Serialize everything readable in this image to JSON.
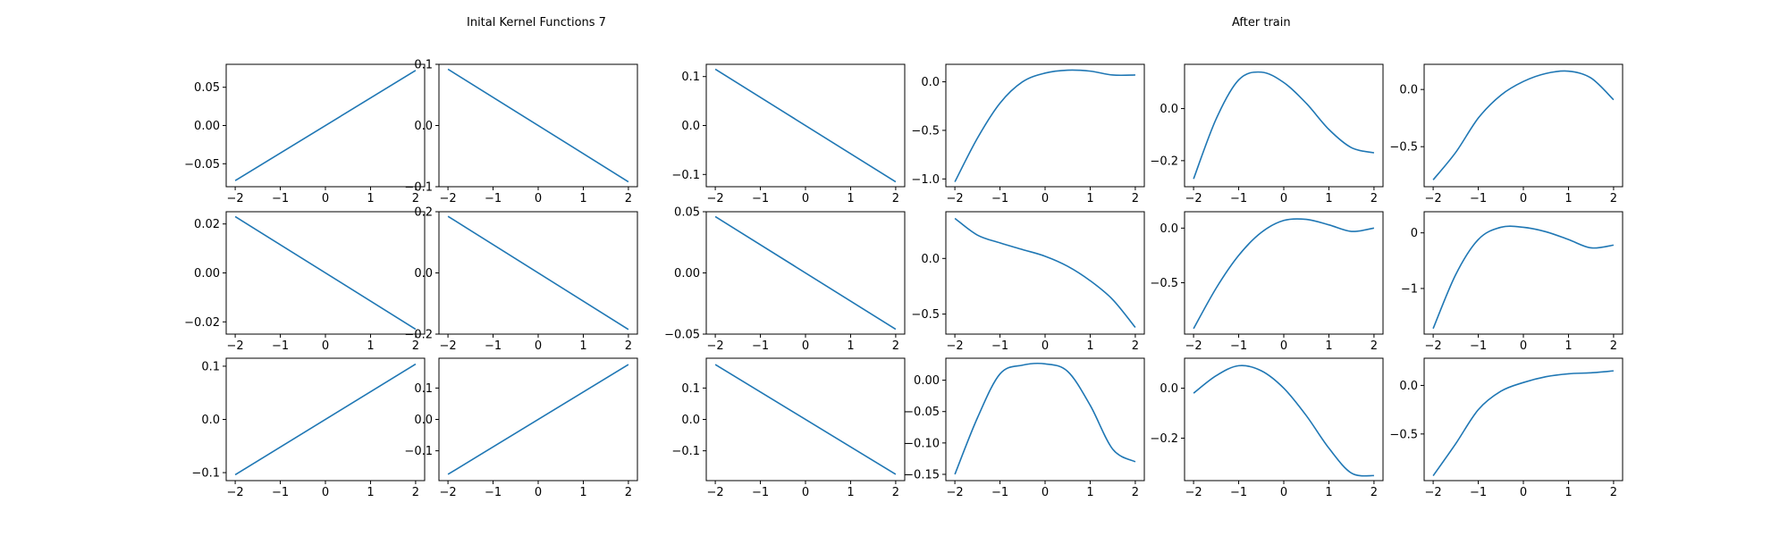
{
  "titles": {
    "left": "Inital Kernel Functions 7",
    "right": "After train"
  },
  "line_color": "#1f77b4",
  "chart_data": [
    {
      "type": "line",
      "x": [
        -2,
        2
      ],
      "ylim": [
        -0.08,
        0.08
      ],
      "yticks": [
        {
          "v": 0.05,
          "label": "0.05"
        },
        {
          "v": 0.0,
          "label": "0.00"
        },
        {
          "v": -0.05,
          "label": "−0.05"
        }
      ],
      "series": [
        {
          "values": [
            -0.072,
            0.072
          ]
        }
      ]
    },
    {
      "type": "line",
      "x": [
        -2,
        2
      ],
      "ylim": [
        -0.1,
        0.1
      ],
      "yticks": [
        {
          "v": 0.1,
          "label": "0.1"
        },
        {
          "v": 0.0,
          "label": "0.0"
        },
        {
          "v": -0.1,
          "label": "−0.1"
        }
      ],
      "series": [
        {
          "values": [
            0.092,
            -0.092
          ]
        }
      ]
    },
    {
      "type": "line",
      "x": [
        -2,
        2
      ],
      "ylim": [
        -0.125,
        0.125
      ],
      "yticks": [
        {
          "v": 0.1,
          "label": "0.1"
        },
        {
          "v": 0.0,
          "label": "0.0"
        },
        {
          "v": -0.1,
          "label": "−0.1"
        }
      ],
      "series": [
        {
          "values": [
            0.115,
            -0.115
          ]
        }
      ]
    },
    {
      "type": "line",
      "x": [
        -2,
        -1.5,
        -1,
        -0.5,
        0,
        0.5,
        1,
        1.5,
        2
      ],
      "ylim": [
        -1.08,
        0.18
      ],
      "yticks": [
        {
          "v": 0.0,
          "label": "0.0"
        },
        {
          "v": -0.5,
          "label": "−0.5"
        },
        {
          "v": -1.0,
          "label": "−1.0"
        }
      ],
      "series": [
        {
          "values": [
            -1.03,
            -0.58,
            -0.22,
            0.0,
            0.09,
            0.12,
            0.11,
            0.07,
            0.07
          ]
        }
      ]
    },
    {
      "type": "line",
      "x": [
        -2,
        -1.5,
        -1,
        -0.5,
        0,
        0.5,
        1,
        1.5,
        2
      ],
      "ylim": [
        -0.3,
        0.17
      ],
      "yticks": [
        {
          "v": 0.0,
          "label": "0.0"
        },
        {
          "v": -0.2,
          "label": "−0.2"
        }
      ],
      "series": [
        {
          "values": [
            -0.27,
            -0.04,
            0.11,
            0.14,
            0.1,
            0.02,
            -0.08,
            -0.15,
            -0.17
          ]
        }
      ]
    },
    {
      "type": "line",
      "x": [
        -2,
        -1.5,
        -1,
        -0.5,
        0,
        0.5,
        1,
        1.5,
        2
      ],
      "ylim": [
        -0.85,
        0.22
      ],
      "yticks": [
        {
          "v": 0.0,
          "label": "0.0"
        },
        {
          "v": -0.5,
          "label": "−0.5"
        }
      ],
      "series": [
        {
          "values": [
            -0.79,
            -0.55,
            -0.25,
            -0.05,
            0.07,
            0.14,
            0.16,
            0.1,
            -0.09
          ]
        }
      ]
    },
    {
      "type": "line",
      "x": [
        -2,
        2
      ],
      "ylim": [
        -0.025,
        0.025
      ],
      "yticks": [
        {
          "v": 0.02,
          "label": "0.02"
        },
        {
          "v": 0.0,
          "label": "0.00"
        },
        {
          "v": -0.02,
          "label": "−0.02"
        }
      ],
      "series": [
        {
          "values": [
            0.023,
            -0.023
          ]
        }
      ]
    },
    {
      "type": "line",
      "x": [
        -2,
        2
      ],
      "ylim": [
        -0.2,
        0.2
      ],
      "yticks": [
        {
          "v": 0.2,
          "label": "0.2"
        },
        {
          "v": 0.0,
          "label": "0.0"
        },
        {
          "v": -0.2,
          "label": "−0.2"
        }
      ],
      "series": [
        {
          "values": [
            0.185,
            -0.185
          ]
        }
      ]
    },
    {
      "type": "line",
      "x": [
        -2,
        2
      ],
      "ylim": [
        -0.05,
        0.05
      ],
      "yticks": [
        {
          "v": 0.05,
          "label": "0.05"
        },
        {
          "v": 0.0,
          "label": "0.00"
        },
        {
          "v": -0.05,
          "label": "−0.05"
        }
      ],
      "series": [
        {
          "values": [
            0.046,
            -0.046
          ]
        }
      ]
    },
    {
      "type": "line",
      "x": [
        -2,
        -1.5,
        -1,
        -0.5,
        0,
        0.5,
        1,
        1.5,
        2
      ],
      "ylim": [
        -0.68,
        0.42
      ],
      "yticks": [
        {
          "v": 0.0,
          "label": "0.0"
        },
        {
          "v": -0.5,
          "label": "−0.5"
        }
      ],
      "series": [
        {
          "values": [
            0.36,
            0.21,
            0.14,
            0.08,
            0.02,
            -0.07,
            -0.2,
            -0.37,
            -0.62
          ]
        }
      ]
    },
    {
      "type": "line",
      "x": [
        -2,
        -1.5,
        -1,
        -0.5,
        0,
        0.5,
        1,
        1.5,
        2
      ],
      "ylim": [
        -0.97,
        0.15
      ],
      "yticks": [
        {
          "v": 0.0,
          "label": "0.0"
        },
        {
          "v": -0.5,
          "label": "−0.5"
        }
      ],
      "series": [
        {
          "values": [
            -0.92,
            -0.55,
            -0.25,
            -0.04,
            0.07,
            0.08,
            0.03,
            -0.03,
            0.0
          ]
        }
      ]
    },
    {
      "type": "line",
      "x": [
        -2,
        -1.5,
        -1,
        -0.5,
        0,
        0.5,
        1,
        1.5,
        2
      ],
      "ylim": [
        -1.82,
        0.38
      ],
      "yticks": [
        {
          "v": 0.0,
          "label": "0"
        },
        {
          "v": -1.0,
          "label": "−1"
        }
      ],
      "series": [
        {
          "values": [
            -1.72,
            -0.75,
            -0.12,
            0.1,
            0.1,
            0.02,
            -0.12,
            -0.27,
            -0.22
          ]
        }
      ]
    },
    {
      "type": "line",
      "x": [
        -2,
        2
      ],
      "ylim": [
        -0.115,
        0.115
      ],
      "yticks": [
        {
          "v": 0.1,
          "label": "0.1"
        },
        {
          "v": 0.0,
          "label": "0.0"
        },
        {
          "v": -0.1,
          "label": "−0.1"
        }
      ],
      "series": [
        {
          "values": [
            -0.104,
            0.104
          ]
        }
      ]
    },
    {
      "type": "line",
      "x": [
        -2,
        2
      ],
      "ylim": [
        -0.195,
        0.195
      ],
      "yticks": [
        {
          "v": 0.1,
          "label": "0.1"
        },
        {
          "v": 0.0,
          "label": "0.0"
        },
        {
          "v": -0.1,
          "label": "−0.1"
        }
      ],
      "series": [
        {
          "values": [
            -0.175,
            0.175
          ]
        }
      ]
    },
    {
      "type": "line",
      "x": [
        -2,
        2
      ],
      "ylim": [
        -0.195,
        0.195
      ],
      "yticks": [
        {
          "v": 0.1,
          "label": "0.1"
        },
        {
          "v": 0.0,
          "label": "0.0"
        },
        {
          "v": -0.1,
          "label": "−0.1"
        }
      ],
      "series": [
        {
          "values": [
            0.175,
            -0.175
          ]
        }
      ]
    },
    {
      "type": "line",
      "x": [
        -2,
        -1.5,
        -1,
        -0.5,
        0,
        0.5,
        1,
        1.5,
        2
      ],
      "ylim": [
        -0.16,
        0.035
      ],
      "yticks": [
        {
          "v": 0.0,
          "label": "0.00"
        },
        {
          "v": -0.05,
          "label": "−0.05"
        },
        {
          "v": -0.1,
          "label": "−0.10"
        },
        {
          "v": -0.15,
          "label": "−0.15"
        }
      ],
      "series": [
        {
          "values": [
            -0.15,
            -0.06,
            0.01,
            0.024,
            0.026,
            0.014,
            -0.04,
            -0.11,
            -0.13
          ]
        }
      ]
    },
    {
      "type": "line",
      "x": [
        -2,
        -1.5,
        -1,
        -0.5,
        0,
        0.5,
        1,
        1.5,
        2
      ],
      "ylim": [
        -0.37,
        0.12
      ],
      "yticks": [
        {
          "v": 0.0,
          "label": "0.0"
        },
        {
          "v": -0.2,
          "label": "−0.2"
        }
      ],
      "series": [
        {
          "values": [
            -0.02,
            0.05,
            0.09,
            0.07,
            0.0,
            -0.11,
            -0.24,
            -0.34,
            -0.35
          ]
        }
      ]
    },
    {
      "type": "line",
      "x": [
        -2,
        -1.5,
        -1,
        -0.5,
        0,
        0.5,
        1,
        1.5,
        2
      ],
      "ylim": [
        -0.98,
        0.28
      ],
      "yticks": [
        {
          "v": 0.0,
          "label": "0.0"
        },
        {
          "v": -0.5,
          "label": "−0.5"
        }
      ],
      "series": [
        {
          "values": [
            -0.93,
            -0.6,
            -0.25,
            -0.06,
            0.03,
            0.09,
            0.12,
            0.13,
            0.15
          ]
        }
      ]
    }
  ]
}
